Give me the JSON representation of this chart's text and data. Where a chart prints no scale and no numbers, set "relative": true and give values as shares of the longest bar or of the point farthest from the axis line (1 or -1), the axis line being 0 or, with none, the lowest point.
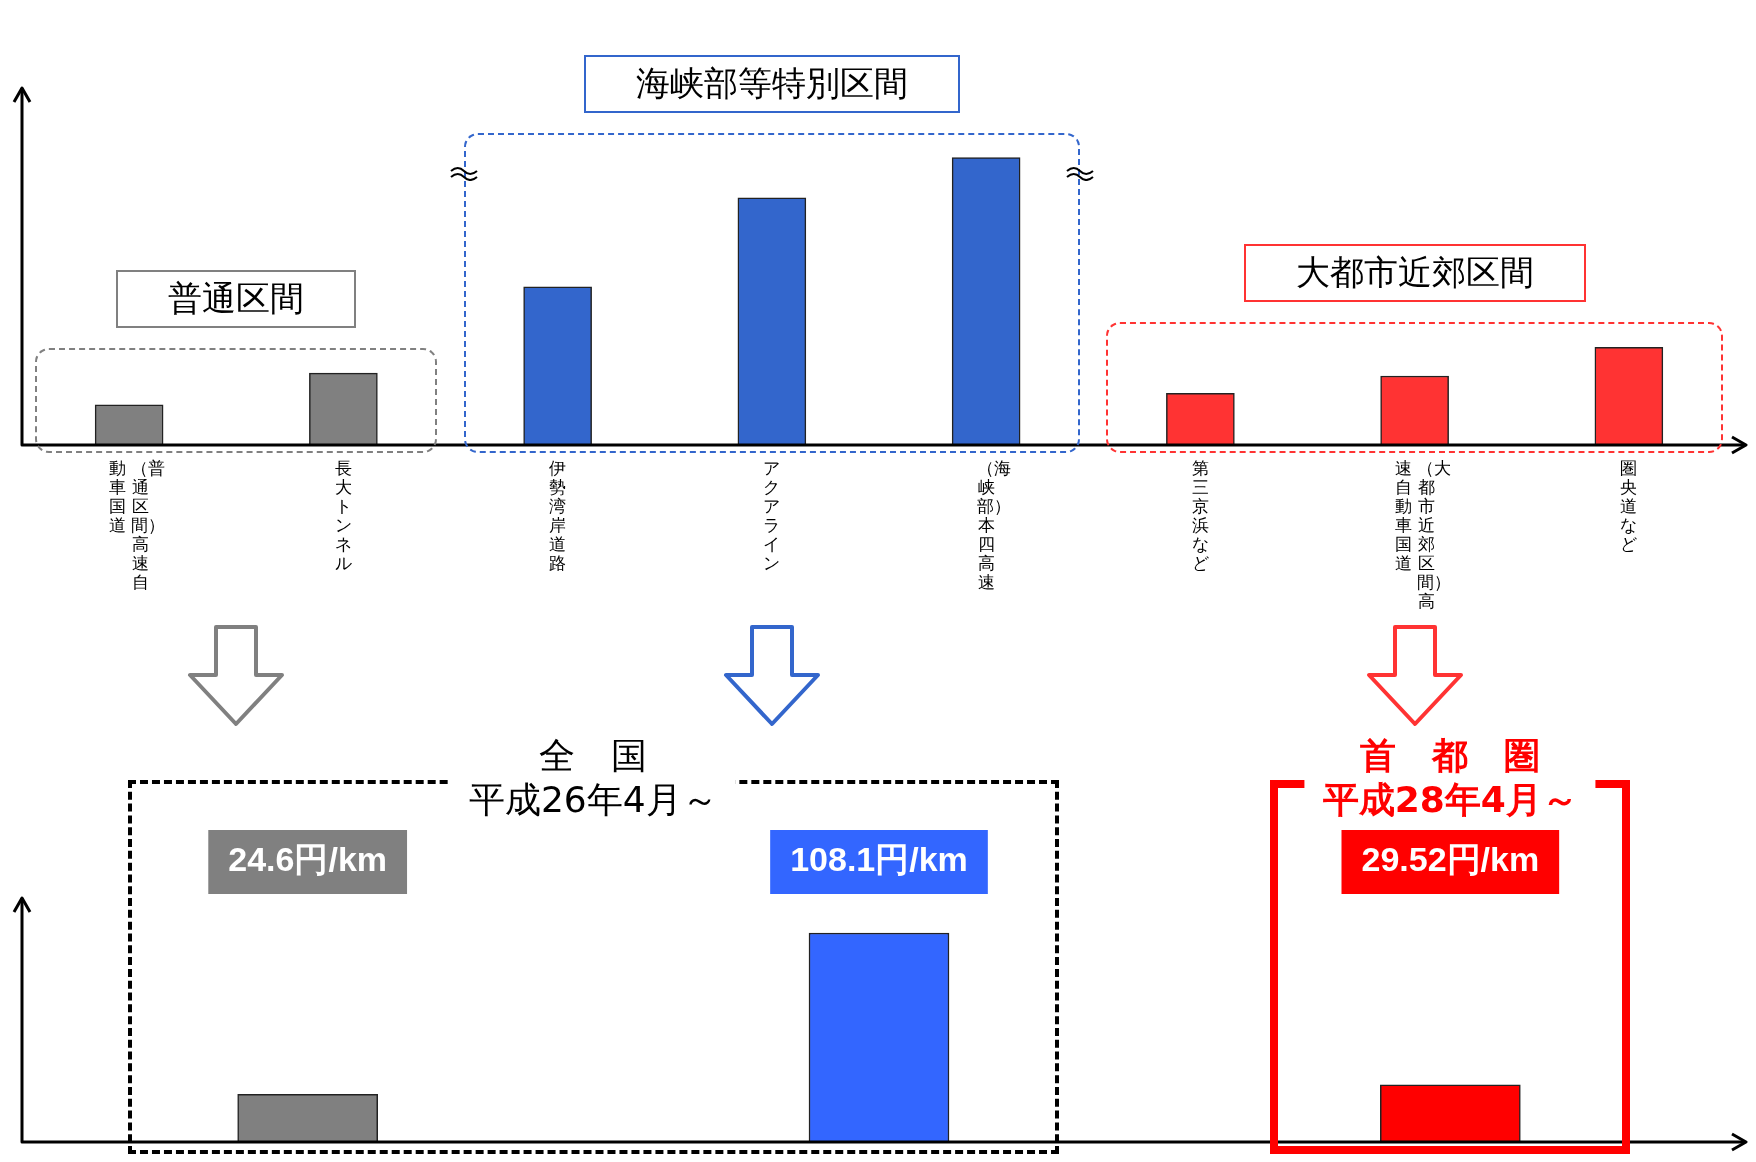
{
  "chart_data": [
    {
      "type": "bar",
      "relative": true,
      "categories": [
        "（普通区間）高速自動車国道",
        "長大トンネル",
        "伊勢湾岸道路",
        "アクアライン",
        "（海峡部）本四高速",
        "第三京浜など",
        "（大都市近郊区間）高速自動車国道",
        "圏央道など"
      ],
      "values": [
        0.14,
        0.25,
        0.55,
        0.86,
        1,
        0.18,
        0.24,
        0.34
      ],
      "colors": [
        "#808080",
        "#808080",
        "#3366cc",
        "#3366cc",
        "#3366cc",
        "#ff3333",
        "#ff3333",
        "#ff3333"
      ],
      "annotations": [
        "普通区間",
        "海峡部等特別区間",
        "大都市近郊区間"
      ]
    },
    {
      "type": "bar",
      "tick_labels": false,
      "categories": [
        null,
        null,
        null
      ],
      "values": [
        24.6,
        108.1,
        29.52
      ],
      "colors": [
        "#808080",
        "#3366ff",
        "#ff0000"
      ],
      "value_labels": [
        "24.6円/km",
        "108.1円/km",
        "29.52円/km"
      ],
      "annotations": [
        "全　国",
        "平成26年4月～",
        "首　都　圏",
        "平成28年4月～"
      ]
    }
  ]
}
